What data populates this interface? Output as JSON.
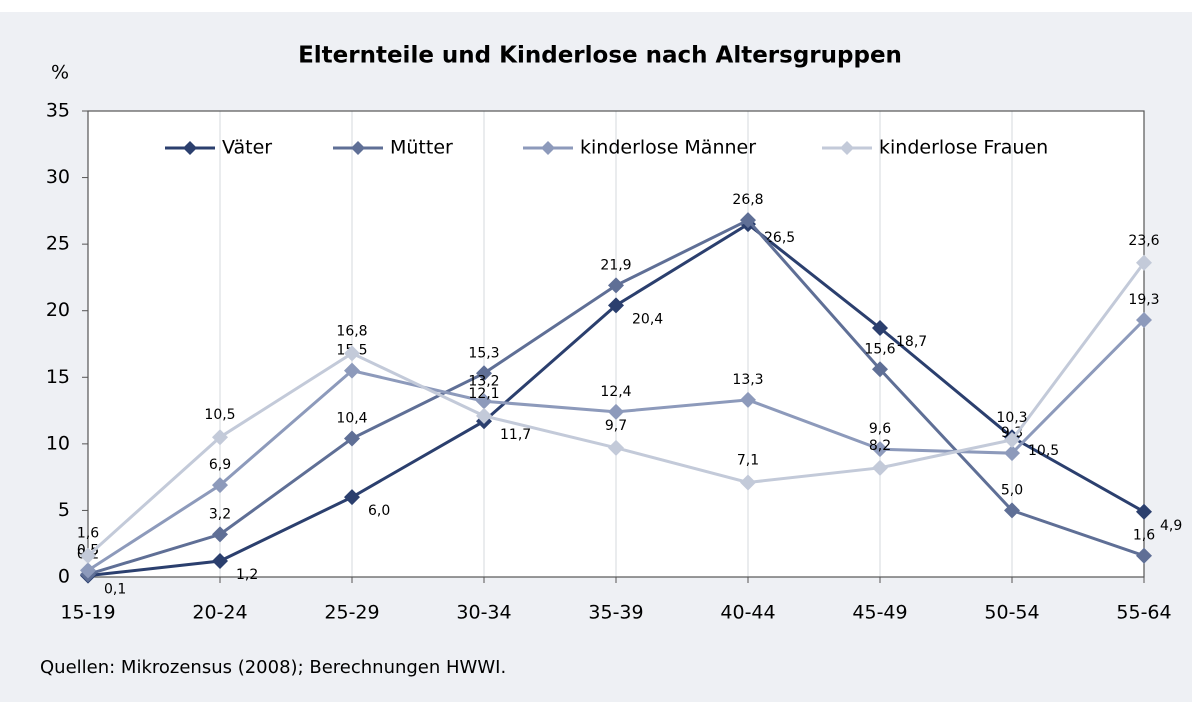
{
  "chart_data": {
    "type": "line",
    "title": "Elternteile und Kinderlose nach Altersgruppen",
    "y_label": "%",
    "source": "Quellen: Mikrozensus (2008); Berechnungen HWWI.",
    "categories": [
      "15-19",
      "20-24",
      "25-29",
      "30-34",
      "35-39",
      "40-44",
      "45-49",
      "50-54",
      "55-64"
    ],
    "series": [
      {
        "name": "Väter",
        "color": "#2b3f6e",
        "values": [
          0.1,
          1.2,
          6.0,
          11.7,
          20.4,
          26.5,
          18.7,
          10.5,
          4.9
        ],
        "value_labels": [
          "0,1",
          "1,2",
          "6,0",
          "11,7",
          "20,4",
          "26,5",
          "18,7",
          "10,5",
          "4,9"
        ]
      },
      {
        "name": "Mütter",
        "color": "#5f6f96",
        "values": [
          0.2,
          3.2,
          10.4,
          15.3,
          21.9,
          26.8,
          15.6,
          5.0,
          1.6
        ],
        "value_labels": [
          "0,2",
          "3,2",
          "10,4",
          "15,3",
          "21,9",
          "26,8",
          "15,6",
          "5,0",
          "1,6"
        ]
      },
      {
        "name": "kinderlose Männer",
        "color": "#8d9abb",
        "values": [
          0.5,
          6.9,
          15.5,
          13.2,
          12.4,
          13.3,
          9.6,
          9.3,
          19.3
        ],
        "value_labels": [
          "0,5",
          "6,9",
          "15,5",
          "13,2",
          "12,4",
          "13,3",
          "9,6",
          "9,3",
          "19,3"
        ]
      },
      {
        "name": "kinderlose Frauen",
        "color": "#c3cad9",
        "values": [
          1.6,
          10.5,
          16.8,
          12.1,
          9.7,
          7.1,
          8.2,
          10.3,
          23.6
        ],
        "value_labels": [
          "1,6",
          "10,5",
          "16,8",
          "12,1",
          "9,7",
          "7,1",
          "8,2",
          "10,3",
          "23,6"
        ]
      }
    ],
    "ylim": [
      0,
      35
    ],
    "yticks": [
      0,
      5,
      10,
      15,
      20,
      25,
      30,
      35
    ],
    "grid": "x",
    "legend": "top"
  }
}
